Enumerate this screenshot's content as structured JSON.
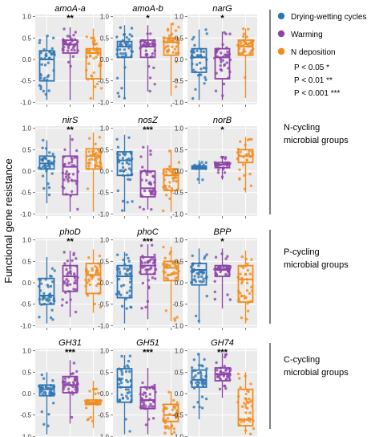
{
  "y_axis_label": "Functional gene resistance",
  "legend": {
    "entries": [
      {
        "label": "Drying-wetting cycles",
        "color": "#2f77b4"
      },
      {
        "label": "Warming",
        "color": "#8e44a8"
      },
      {
        "label": "N deposition",
        "color": "#f28c1c"
      }
    ],
    "significance_notes": [
      "P < 0.05 *",
      "P < 0.01 **",
      "P < 0.001 ***"
    ]
  },
  "groups": [
    {
      "line1": "N-cycling",
      "line2": "microbial groups"
    },
    {
      "line1": "P-cycling",
      "line2": "microbial groups"
    },
    {
      "line1": "C-cycling",
      "line2": "microbial groups"
    }
  ],
  "chart_data": {
    "type": "box",
    "ylabel": "Functional gene resistance",
    "ylim": [
      -1.05,
      1.05
    ],
    "yticks": [
      "1.0",
      "0.5",
      "0.0",
      "-0.5",
      "-1.0"
    ],
    "series_names": [
      "Drying-wetting cycles",
      "Warming",
      "N deposition"
    ],
    "panels": [
      {
        "gene": "amoA-a",
        "sig": "**",
        "boxes": [
          {
            "min": -0.95,
            "q1": -0.5,
            "median": 0.0,
            "q3": 0.2,
            "max": 0.55,
            "n": 40
          },
          {
            "min": -0.95,
            "q1": 0.15,
            "median": 0.35,
            "q3": 0.45,
            "max": 0.75,
            "n": 38
          },
          {
            "min": -0.95,
            "q1": -0.45,
            "median": 0.15,
            "q3": 0.25,
            "max": 0.72,
            "n": 40
          }
        ]
      },
      {
        "gene": "amoA-b",
        "sig": "*",
        "boxes": [
          {
            "min": -0.92,
            "q1": 0.05,
            "median": 0.3,
            "q3": 0.42,
            "max": 0.8,
            "n": 42
          },
          {
            "min": -0.75,
            "q1": 0.05,
            "median": 0.3,
            "q3": 0.45,
            "max": 0.8,
            "n": 40
          },
          {
            "min": -0.85,
            "q1": 0.1,
            "median": 0.4,
            "q3": 0.5,
            "max": 0.85,
            "n": 40
          }
        ]
      },
      {
        "gene": "narG",
        "sig": "*",
        "boxes": [
          {
            "min": -0.95,
            "q1": -0.3,
            "median": 0.05,
            "q3": 0.25,
            "max": 0.7,
            "n": 40
          },
          {
            "min": -0.95,
            "q1": -0.45,
            "median": 0.05,
            "q3": 0.25,
            "max": 0.65,
            "n": 40
          },
          {
            "min": -0.9,
            "q1": 0.1,
            "median": 0.3,
            "q3": 0.45,
            "max": 0.72,
            "n": 40
          }
        ]
      },
      {
        "gene": "nirS",
        "sig": "**",
        "boxes": [
          {
            "min": -0.75,
            "q1": 0.05,
            "median": 0.18,
            "q3": 0.35,
            "max": 0.72,
            "n": 40
          },
          {
            "min": -0.95,
            "q1": -0.55,
            "median": 0.1,
            "q3": 0.35,
            "max": 0.85,
            "n": 38
          },
          {
            "min": -0.95,
            "q1": 0.05,
            "median": 0.35,
            "q3": 0.52,
            "max": 0.9,
            "n": 40
          }
        ]
      },
      {
        "gene": "nosZ",
        "sig": "***",
        "boxes": [
          {
            "min": -0.95,
            "q1": -0.1,
            "median": 0.25,
            "q3": 0.45,
            "max": 0.85,
            "n": 42
          },
          {
            "min": -0.9,
            "q1": -0.6,
            "median": -0.4,
            "q3": 0.0,
            "max": 0.6,
            "n": 40
          },
          {
            "min": -0.95,
            "q1": -0.45,
            "median": -0.1,
            "q3": 0.05,
            "max": 0.5,
            "n": 40
          }
        ]
      },
      {
        "gene": "norB",
        "sig": "*",
        "boxes": [
          {
            "min": -0.3,
            "q1": 0.05,
            "median": 0.08,
            "q3": 0.12,
            "max": 0.25,
            "n": 30
          },
          {
            "min": -0.2,
            "q1": 0.08,
            "median": 0.15,
            "q3": 0.2,
            "max": 0.35,
            "n": 30
          },
          {
            "min": -0.5,
            "q1": 0.2,
            "median": 0.35,
            "q3": 0.5,
            "max": 0.8,
            "n": 30
          }
        ]
      },
      {
        "gene": "phoD",
        "sig": "**",
        "boxes": [
          {
            "min": -0.95,
            "q1": -0.5,
            "median": -0.3,
            "q3": 0.1,
            "max": 0.6,
            "n": 42
          },
          {
            "min": -0.8,
            "q1": -0.2,
            "median": 0.15,
            "q3": 0.4,
            "max": 0.75,
            "n": 40
          },
          {
            "min": -0.7,
            "q1": -0.25,
            "median": 0.18,
            "q3": 0.45,
            "max": 0.78,
            "n": 40
          }
        ]
      },
      {
        "gene": "phoC",
        "sig": "***",
        "boxes": [
          {
            "min": -0.95,
            "q1": -0.35,
            "median": 0.15,
            "q3": 0.4,
            "max": 0.72,
            "n": 42
          },
          {
            "min": -0.85,
            "q1": 0.2,
            "median": 0.4,
            "q3": 0.6,
            "max": 0.9,
            "n": 40
          },
          {
            "min": -0.9,
            "q1": 0.05,
            "median": 0.35,
            "q3": 0.5,
            "max": 0.85,
            "n": 40
          }
        ]
      },
      {
        "gene": "BPP",
        "sig": "*",
        "boxes": [
          {
            "min": -0.95,
            "q1": -0.05,
            "median": 0.3,
            "q3": 0.45,
            "max": 0.8,
            "n": 42
          },
          {
            "min": -0.6,
            "q1": 0.15,
            "median": 0.3,
            "q3": 0.4,
            "max": 0.8,
            "n": 40
          },
          {
            "min": -0.95,
            "q1": -0.45,
            "median": 0.08,
            "q3": 0.4,
            "max": 0.75,
            "n": 40
          }
        ]
      },
      {
        "gene": "GH31",
        "sig": "***",
        "boxes": [
          {
            "min": -0.95,
            "q1": -0.05,
            "median": 0.1,
            "q3": 0.2,
            "max": 0.5,
            "n": 42
          },
          {
            "min": -0.7,
            "q1": 0.02,
            "median": 0.2,
            "q3": 0.4,
            "max": 0.78,
            "n": 40
          },
          {
            "min": -0.8,
            "q1": -0.25,
            "median": -0.2,
            "q3": -0.15,
            "max": 0.3,
            "n": 36
          }
        ]
      },
      {
        "gene": "GH51",
        "sig": "***",
        "boxes": [
          {
            "min": -0.95,
            "q1": -0.2,
            "median": 0.15,
            "q3": 0.58,
            "max": 0.9,
            "n": 42
          },
          {
            "min": -0.95,
            "q1": -0.35,
            "median": -0.15,
            "q3": 0.15,
            "max": 0.6,
            "n": 40
          },
          {
            "min": -0.95,
            "q1": -0.65,
            "median": -0.5,
            "q3": -0.25,
            "max": 0.05,
            "n": 40
          }
        ]
      },
      {
        "gene": "GH74",
        "sig": "***",
        "boxes": [
          {
            "min": -0.6,
            "q1": 0.15,
            "median": 0.32,
            "q3": 0.55,
            "max": 0.95,
            "n": 42
          },
          {
            "min": -0.1,
            "q1": 0.3,
            "median": 0.45,
            "q3": 0.6,
            "max": 0.95,
            "n": 40
          },
          {
            "min": -0.95,
            "q1": -0.75,
            "median": -0.6,
            "q3": 0.1,
            "max": 0.5,
            "n": 40
          }
        ]
      }
    ]
  }
}
